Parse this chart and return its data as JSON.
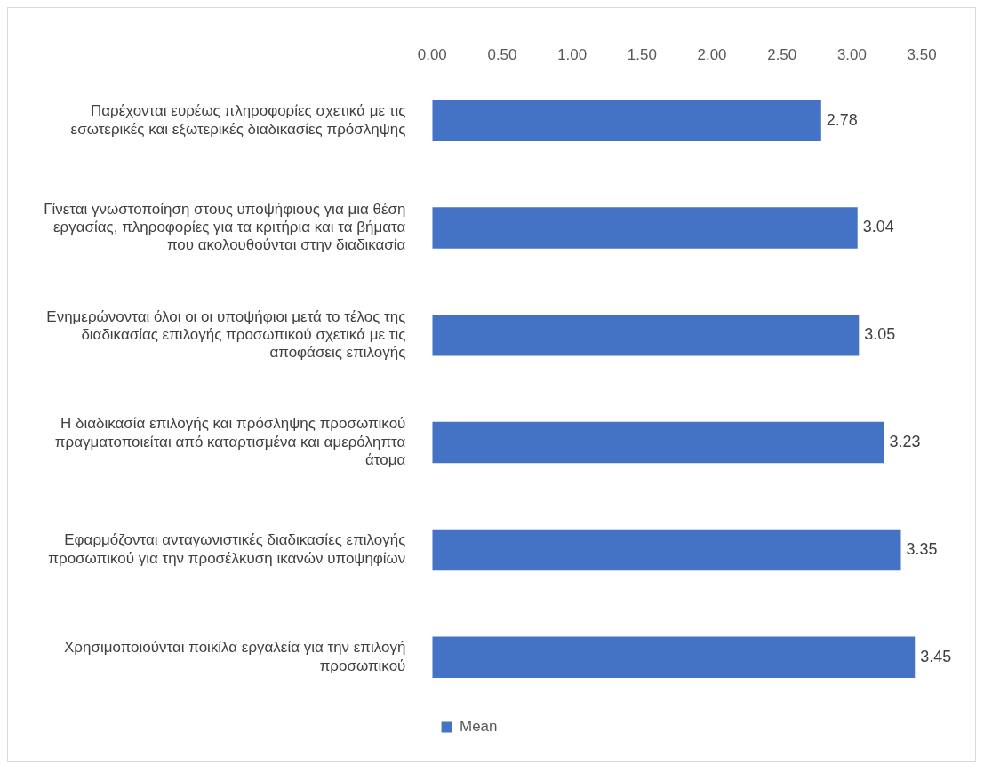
{
  "chart_data": {
    "type": "bar",
    "orientation": "horizontal",
    "categories": [
      "Παρέχονται ευρέως πληροφορίες σχετικά με τις εσωτερικές και εξωτερικές διαδικασίες πρόσληψης",
      "Γίνεται γνωστοποίηση στους υποψήφιους για μια θέση εργασίας, πληροφορίες για τα κριτήρια και τα βήματα που ακολουθούνται στην διαδικασία",
      "Ενημερώνονται όλοι οι οι υποψήφιοι μετά το τέλος της διαδικασίας επιλογής προσωπικού σχετικά με τις αποφάσεις επιλογής",
      "Η διαδικασία επιλογής και πρόσληψης προσωπικού πραγματοποιείται από καταρτισμένα και αμερόληπτα άτομα",
      "Εφαρμόζονται ανταγωνιστικές διαδικασίες επιλογής προσωπικού για την προσέλκυση ικανών υποψηφίων",
      "Χρησιμοποιούνται ποικίλα εργαλεία για την επιλογή προσωπικού"
    ],
    "series": [
      {
        "name": "Mean",
        "color": "#4472c4",
        "values": [
          2.78,
          3.04,
          3.05,
          3.23,
          3.35,
          3.45
        ]
      }
    ],
    "xlim": [
      0,
      3.5
    ],
    "xticks": [
      {
        "value": 0,
        "label": "0.00"
      },
      {
        "value": 0.5,
        "label": "0.50"
      },
      {
        "value": 1,
        "label": "1.00"
      },
      {
        "value": 1.5,
        "label": "1.50"
      },
      {
        "value": 2,
        "label": "2.00"
      },
      {
        "value": 2.5,
        "label": "2.50"
      },
      {
        "value": 3,
        "label": "3.00"
      },
      {
        "value": 3.5,
        "label": "3.50"
      }
    ],
    "data_labels": true,
    "grid": false,
    "legend": "bottom"
  }
}
